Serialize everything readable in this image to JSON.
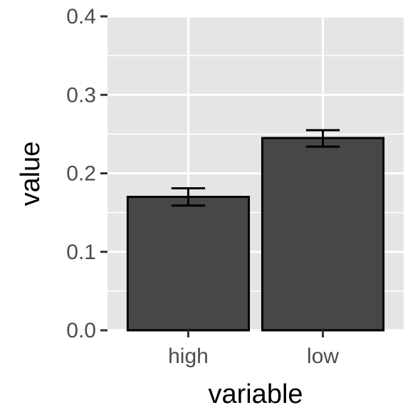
{
  "chart_data": {
    "type": "bar",
    "categories": [
      "high",
      "low"
    ],
    "values": [
      0.17,
      0.245
    ],
    "error_bars": [
      {
        "lower": 0.159,
        "upper": 0.181
      },
      {
        "lower": 0.234,
        "upper": 0.255
      }
    ],
    "xlabel": "variable",
    "ylabel": "value",
    "ylim": [
      0,
      0.4
    ],
    "y_ticks": [
      "0.0",
      "0.1",
      "0.2",
      "0.3",
      "0.4"
    ],
    "y_tick_values": [
      0,
      0.1,
      0.2,
      0.3,
      0.4
    ],
    "grid": true,
    "colors": {
      "panel": "#e5e5e5",
      "grid": "#ffffff",
      "bar_fill": "#474747",
      "bar_stroke": "#000000",
      "tick": "#333333"
    }
  }
}
